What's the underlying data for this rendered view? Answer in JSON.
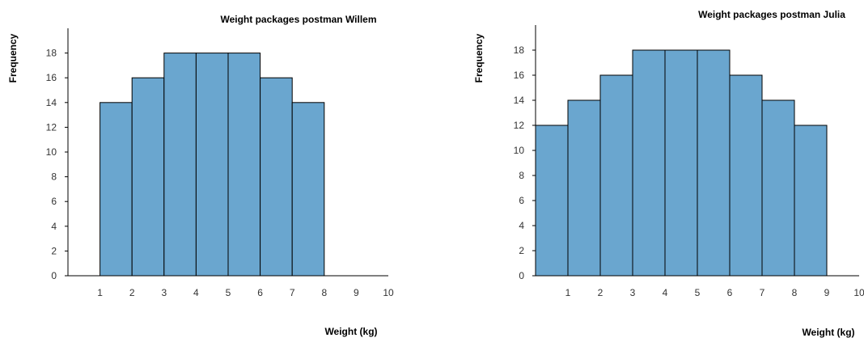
{
  "colors": {
    "bar_fill": "#6aa6cf",
    "bar_stroke": "#000000"
  },
  "chart_data": [
    {
      "type": "bar",
      "title": "Weight packages postman Willem",
      "xlabel": "Weight (kg)",
      "ylabel": "Frequency",
      "bins": [
        [
          1,
          2
        ],
        [
          2,
          3
        ],
        [
          3,
          4
        ],
        [
          4,
          5
        ],
        [
          5,
          6
        ],
        [
          6,
          7
        ],
        [
          7,
          8
        ]
      ],
      "values": [
        14,
        16,
        18,
        18,
        18,
        16,
        14
      ],
      "xlim": [
        0,
        10
      ],
      "ylim": [
        0,
        20
      ],
      "xticks": [
        1,
        2,
        3,
        4,
        5,
        6,
        7,
        8,
        9,
        10
      ],
      "yticks": [
        0,
        2,
        4,
        6,
        8,
        10,
        12,
        14,
        16,
        18
      ],
      "grid": false
    },
    {
      "type": "bar",
      "title": "Weight packages postman Julia",
      "xlabel": "Weight (kg)",
      "ylabel": "Frequency",
      "bins": [
        [
          0,
          1
        ],
        [
          1,
          2
        ],
        [
          2,
          3
        ],
        [
          3,
          4
        ],
        [
          4,
          5
        ],
        [
          5,
          6
        ],
        [
          6,
          7
        ],
        [
          7,
          8
        ],
        [
          8,
          9
        ]
      ],
      "values": [
        12,
        14,
        16,
        18,
        18,
        18,
        16,
        14,
        12
      ],
      "xlim": [
        0,
        10
      ],
      "ylim": [
        0,
        20
      ],
      "xticks": [
        1,
        2,
        3,
        4,
        5,
        6,
        7,
        8,
        9,
        10
      ],
      "yticks": [
        0,
        2,
        4,
        6,
        8,
        10,
        12,
        14,
        16,
        18
      ],
      "grid": false
    }
  ]
}
